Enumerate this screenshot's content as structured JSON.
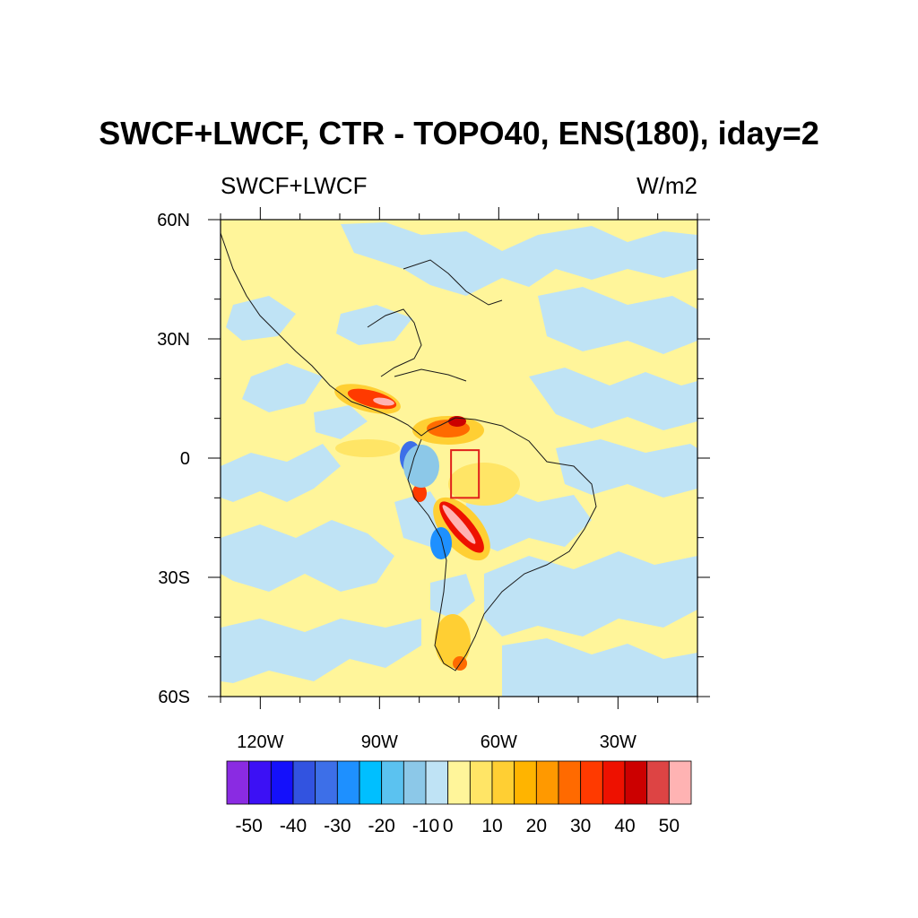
{
  "title": "SWCF+LWCF, CTR - TOPO40, ENS(180), iday=2",
  "left_label": "SWCF+LWCF",
  "right_label": "W/m2",
  "lat_ticks": [
    {
      "value": 60,
      "label": "60N"
    },
    {
      "value": 30,
      "label": "30N"
    },
    {
      "value": 0,
      "label": "0"
    },
    {
      "value": -30,
      "label": "30S"
    },
    {
      "value": -60,
      "label": "60S"
    }
  ],
  "lon_ticks": [
    {
      "value": -120,
      "label": "120W"
    },
    {
      "value": -90,
      "label": "90W"
    },
    {
      "value": -60,
      "label": "60W"
    },
    {
      "value": -30,
      "label": "30W"
    }
  ],
  "map_extent": {
    "lon": [
      -130,
      -10
    ],
    "lat": [
      -60,
      60
    ]
  },
  "box_region": {
    "lon": [
      -72,
      -65
    ],
    "lat": [
      -10,
      2
    ],
    "color": "#e0201b"
  },
  "colorbar": {
    "colors": [
      "#8a2be2",
      "#3c10f5",
      "#1410fb",
      "#3253e0",
      "#3d6fe8",
      "#1e90ff",
      "#00bfff",
      "#5bc2f0",
      "#8cc8e8",
      "#bfe3f5",
      "#fff59a",
      "#ffe566",
      "#ffcf33",
      "#ffb400",
      "#ff9900",
      "#ff6a00",
      "#ff3a00",
      "#ee1100",
      "#cc0000",
      "#dd4444",
      "#ffb3b3"
    ],
    "labels": [
      {
        "after_index": 0,
        "text": "-50"
      },
      {
        "after_index": 2,
        "text": "-40"
      },
      {
        "after_index": 4,
        "text": "-30"
      },
      {
        "after_index": 6,
        "text": "-20"
      },
      {
        "after_index": 8,
        "text": "-10"
      },
      {
        "after_index": 9,
        "text": "0"
      },
      {
        "after_index": 11,
        "text": "10"
      },
      {
        "after_index": 13,
        "text": "20"
      },
      {
        "after_index": 15,
        "text": "30"
      },
      {
        "after_index": 17,
        "text": "40"
      },
      {
        "after_index": 19,
        "text": "50"
      }
    ]
  },
  "field_colors": {
    "neutral_pos": "#fff59a",
    "neutral_neg": "#bfe3f5",
    "coast": "#1a1a1a"
  }
}
